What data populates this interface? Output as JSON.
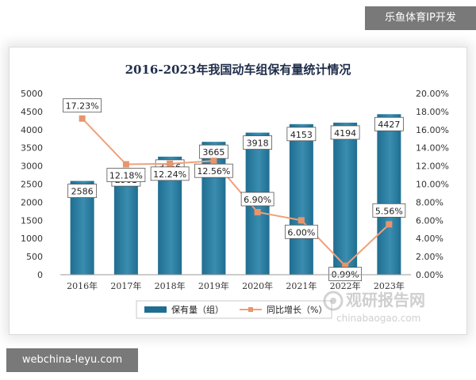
{
  "overlays": {
    "top_right": "乐鱼体育IP开发",
    "bottom_left": "webchina-leyu.com"
  },
  "watermark": {
    "cn": "观研报告网",
    "url": "chinabaogao.com"
  },
  "colors": {
    "bar": "#1f6e91",
    "bar_highlight": "#3a8db0",
    "line": "#f0a07a",
    "marker": "#e8956c"
  },
  "chart_data": {
    "type": "bar+line",
    "title": "2016-2023年我国动车组保有量统计情况",
    "categories": [
      "2016年",
      "2017年",
      "2018年",
      "2019年",
      "2020年",
      "2021年",
      "2022年",
      "2023年"
    ],
    "series": [
      {
        "name": "保有量（组）",
        "type": "bar",
        "axis": "left",
        "values": [
          2586,
          2901,
          3256,
          3665,
          3918,
          4153,
          4194,
          4427
        ],
        "labels": [
          "2586",
          "2901",
          "3256",
          "3665",
          "3918",
          "4153",
          "4194",
          "4427"
        ]
      },
      {
        "name": "同比增长（%）",
        "type": "line",
        "axis": "right",
        "values": [
          17.23,
          12.18,
          12.24,
          12.56,
          6.9,
          6.0,
          0.99,
          5.56
        ],
        "labels": [
          "17.23%",
          "12.18%",
          "12.24%",
          "12.56%",
          "6.90%",
          "6.00%",
          "0.99%",
          "5.56%"
        ]
      }
    ],
    "y_left": {
      "min": 0,
      "max": 5000,
      "ticks": [
        "0",
        "500",
        "1000",
        "1500",
        "2000",
        "2500",
        "3000",
        "3500",
        "4000",
        "4500",
        "5000"
      ]
    },
    "y_right": {
      "min": 0,
      "max": 20,
      "ticks": [
        "0.00%",
        "2.00%",
        "4.00%",
        "6.00%",
        "8.00%",
        "10.00%",
        "12.00%",
        "14.00%",
        "16.00%",
        "18.00%",
        "20.00%"
      ]
    },
    "legend": {
      "position": "bottom",
      "items": [
        "保有量（组）",
        "同比增长（%）"
      ]
    },
    "grid": false
  }
}
